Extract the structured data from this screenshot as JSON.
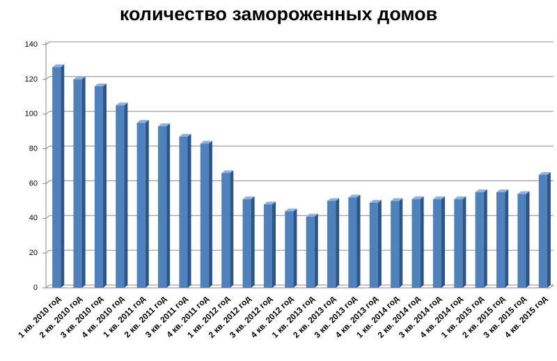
{
  "chart_data": {
    "type": "bar3d",
    "title": "количество замороженных домов",
    "categories": [
      "1 кв. 2010 год",
      "2 кв. 2010 год",
      "3 кв. 2010 год",
      "4 кв. 2010 год",
      "1 кв. 2011 год",
      "2 кв. 2011 год",
      "3 кв. 2011 год",
      "4 кв. 2011 год",
      "1 кв. 2012 год",
      "2 кв. 2012 год",
      "3 кв. 2012 год",
      "4 кв. 2012 год",
      "1 кв. 2013 год",
      "2 кв. 2013 год",
      "3 кв. 2013 год",
      "4 кв. 2013 год",
      "1 кв. 2014 год",
      "2 кв. 2014 год",
      "3 кв. 2014 год",
      "4 кв. 2014 год",
      "1 кв. 2015 год",
      "2 кв. 2015 год",
      "3 кв. 2015 год",
      "4 кв. 2015 год"
    ],
    "values": [
      127,
      120,
      116,
      105,
      95,
      93,
      87,
      83,
      66,
      51,
      48,
      44,
      41,
      50,
      52,
      49,
      50,
      51,
      51,
      51,
      55,
      55,
      54,
      65
    ],
    "color": "#4f81bd",
    "ylim": [
      0,
      140
    ],
    "yticks": [
      0,
      20,
      40,
      60,
      80,
      100,
      120,
      140
    ],
    "grid": true
  }
}
